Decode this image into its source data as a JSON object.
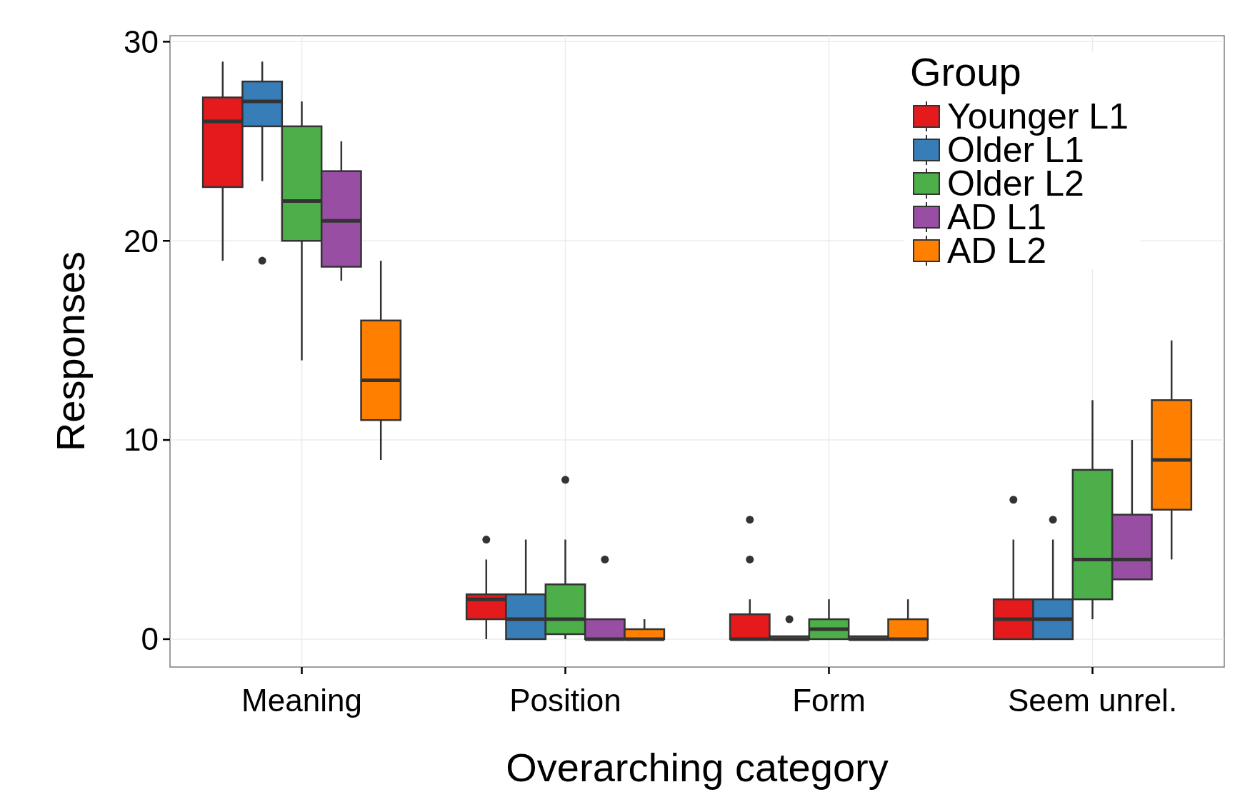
{
  "chart_data": {
    "type": "box",
    "xlabel": "Overarching category",
    "ylabel": "Responses",
    "legend_title": "Group",
    "categories": [
      "Meaning",
      "Position",
      "Form",
      "Seem unrel."
    ],
    "ylim": [
      -1.4,
      30.3
    ],
    "yticks": [
      0,
      10,
      20,
      30
    ],
    "grid": true,
    "legend": "top right",
    "series": [
      {
        "name": "Younger L1",
        "color": "#e41a1c",
        "boxes": [
          {
            "low": 19,
            "q1": 22.7,
            "median": 26,
            "q3": 27.2,
            "high": 29
          },
          {
            "low": 0,
            "q1": 1,
            "median": 2,
            "q3": 2.25,
            "high": 4,
            "outliers": [
              5
            ]
          },
          {
            "low": 0,
            "q1": 0,
            "median": 0,
            "q3": 1.25,
            "high": 2,
            "outliers": [
              4,
              6
            ]
          },
          {
            "low": 0,
            "q1": 0,
            "median": 1,
            "q3": 2,
            "high": 5,
            "outliers": [
              7
            ]
          }
        ]
      },
      {
        "name": "Older L1",
        "color": "#377eb8",
        "boxes": [
          {
            "low": 23,
            "q1": 25.75,
            "median": 27,
            "q3": 28,
            "high": 29,
            "outliers": [
              19
            ]
          },
          {
            "low": 0,
            "q1": 0,
            "median": 1,
            "q3": 2.25,
            "high": 5
          },
          {
            "low": 0,
            "q1": 0,
            "median": 0,
            "q3": 0,
            "high": 0,
            "outliers": [
              1
            ]
          },
          {
            "low": 0,
            "q1": 0,
            "median": 1,
            "q3": 2,
            "high": 5,
            "outliers": [
              6
            ]
          }
        ]
      },
      {
        "name": "Older L2",
        "color": "#4daf4a",
        "boxes": [
          {
            "low": 14,
            "q1": 20,
            "median": 22,
            "q3": 25.75,
            "high": 27
          },
          {
            "low": 0,
            "q1": 0.25,
            "median": 1,
            "q3": 2.75,
            "high": 5,
            "outliers": [
              8
            ]
          },
          {
            "low": 0,
            "q1": 0,
            "median": 0.5,
            "q3": 1,
            "high": 2
          },
          {
            "low": 1,
            "q1": 2,
            "median": 4,
            "q3": 8.5,
            "high": 12
          }
        ]
      },
      {
        "name": "AD L1",
        "color": "#984ea3",
        "boxes": [
          {
            "low": 18,
            "q1": 18.7,
            "median": 21,
            "q3": 23.5,
            "high": 25
          },
          {
            "low": 0,
            "q1": 0,
            "median": 0,
            "q3": 1,
            "high": 1,
            "outliers": [
              4
            ]
          },
          {
            "low": 0,
            "q1": 0,
            "median": 0,
            "q3": 0,
            "high": 0
          },
          {
            "low": 3,
            "q1": 3,
            "median": 4,
            "q3": 6.25,
            "high": 10
          }
        ]
      },
      {
        "name": "AD L2",
        "color": "#ff7f00",
        "boxes": [
          {
            "low": 9,
            "q1": 11,
            "median": 13,
            "q3": 16,
            "high": 19
          },
          {
            "low": 0,
            "q1": 0,
            "median": 0,
            "q3": 0.5,
            "high": 1
          },
          {
            "low": 0,
            "q1": 0,
            "median": 0,
            "q3": 1,
            "high": 2
          },
          {
            "low": 4,
            "q1": 6.5,
            "median": 9,
            "q3": 12,
            "high": 15
          }
        ]
      }
    ]
  }
}
